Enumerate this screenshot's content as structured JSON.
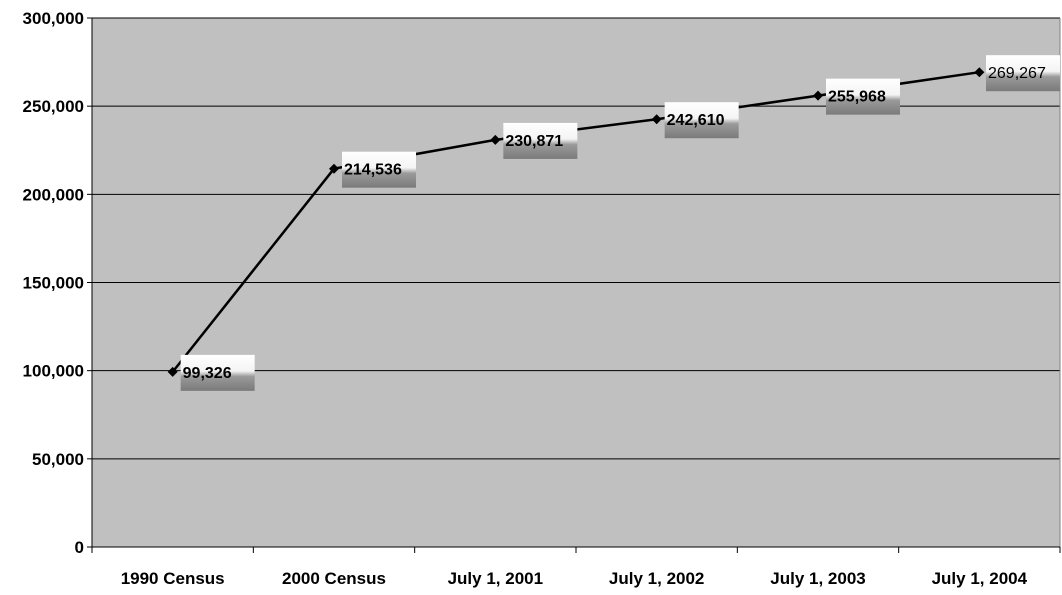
{
  "chart_data": {
    "type": "line",
    "categories": [
      "1990 Census",
      "2000 Census",
      "July 1, 2001",
      "July 1, 2002",
      "July 1, 2003",
      "July 1, 2004"
    ],
    "series": [
      {
        "values": [
          99326,
          214536,
          230871,
          242610,
          255968,
          269267
        ]
      }
    ],
    "data_labels": [
      "99,326",
      "214,536",
      "230,871",
      "242,610",
      "255,968",
      "269,267"
    ],
    "ylim": [
      0,
      300000
    ],
    "yticks": [
      0,
      50000,
      100000,
      150000,
      200000,
      250000,
      300000
    ],
    "ytick_labels": [
      "0",
      "50,000",
      "100,000",
      "150,000",
      "200,000",
      "250,000",
      "300,000"
    ],
    "grid": true,
    "colors": {
      "plot_background": "#c0c0c0",
      "line": "#000000",
      "gridline": "#000000"
    }
  }
}
